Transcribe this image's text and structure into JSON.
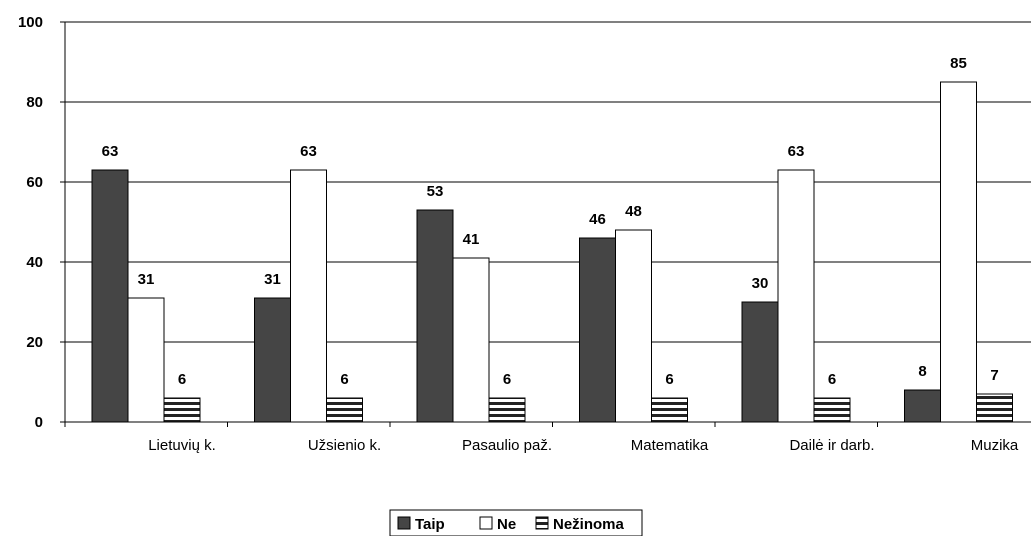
{
  "chart_data": {
    "type": "bar",
    "categories": [
      "Lietuvių k.",
      "Užsienio k.",
      "Pasaulio paž.",
      "Matematika",
      "Dailė ir darb.",
      "Muzika"
    ],
    "series": [
      {
        "name": "Taip",
        "values": [
          63,
          31,
          53,
          46,
          30,
          8
        ],
        "color": "#454545",
        "pattern": "solid"
      },
      {
        "name": "Ne",
        "values": [
          31,
          63,
          41,
          48,
          63,
          85
        ],
        "color": "#ffffff",
        "pattern": "solid"
      },
      {
        "name": "Nežinoma",
        "values": [
          6,
          6,
          6,
          6,
          6,
          7
        ],
        "color": "#ffffff",
        "pattern": "horizontal-stripes"
      }
    ],
    "data_labels": [
      [
        "63",
        "31",
        "53",
        "46",
        "30",
        "8"
      ],
      [
        "31",
        "63",
        "41",
        "48",
        "63",
        "85"
      ],
      [
        "6",
        "6",
        "6",
        "6",
        "6",
        "7"
      ]
    ],
    "y_ticks": [
      "0",
      "20",
      "40",
      "60",
      "80",
      "100"
    ],
    "ylim": [
      0,
      100
    ],
    "grid": true,
    "legend_position": "bottom-center",
    "title": "",
    "xlabel": "",
    "ylabel": ""
  }
}
